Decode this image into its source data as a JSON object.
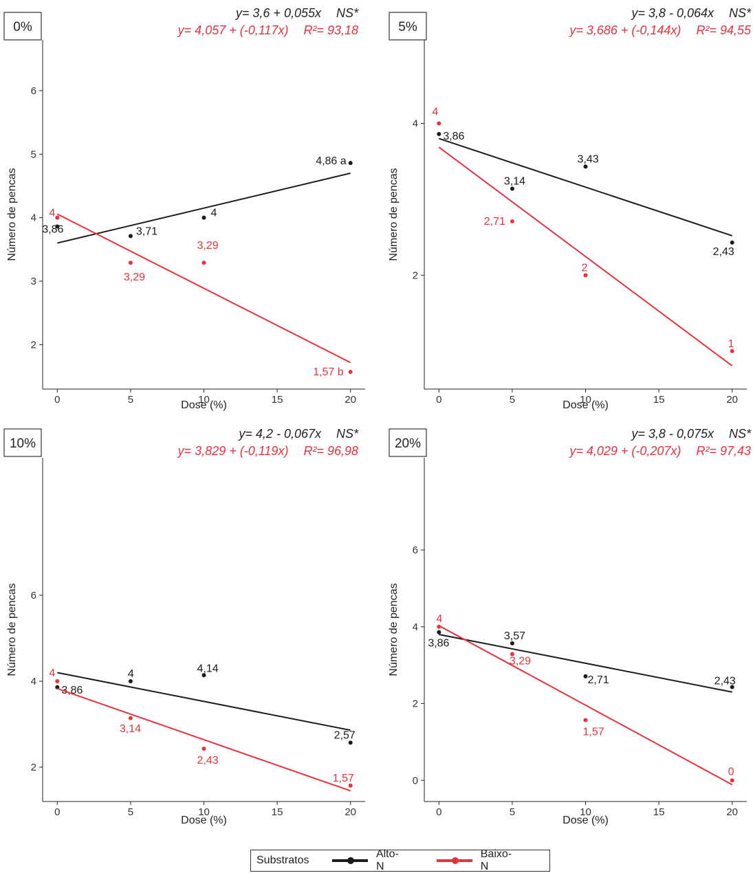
{
  "colors": {
    "alto": "#1a1a1a",
    "baixo": "#e8323c",
    "axis": "#222222"
  },
  "legend": {
    "title": "Substratos",
    "items": [
      {
        "label": "Alto-N",
        "color": "#1a1a1a"
      },
      {
        "label": "Baixo-N",
        "color": "#e8323c"
      }
    ]
  },
  "chart_data": [
    {
      "type": "scatter",
      "panel_label": "0%",
      "xlabel": "Dose (%)",
      "ylabel": "Número de pencas",
      "xlim": [
        -1,
        21
      ],
      "ylim": [
        1.3,
        6.8
      ],
      "xticks": [
        0,
        5,
        10,
        15,
        20
      ],
      "yticks": [
        2,
        3,
        4,
        5,
        6
      ],
      "grid": false,
      "eq_alto": "y= 3,6 + 0,055x",
      "eq_alto_sig": "NS*",
      "eq_baixo": "y= 4,057 + (-0,117x)",
      "eq_baixo_r2": "R²= 93,18",
      "series": [
        {
          "name": "Alto-N",
          "x": [
            0,
            5,
            10,
            20
          ],
          "y": [
            3.86,
            3.71,
            4.0,
            4.86
          ],
          "labels": [
            "3,86",
            "3,71",
            "4",
            "4,86 a"
          ],
          "fit": {
            "intercept": 3.6,
            "slope": 0.055
          }
        },
        {
          "name": "Baixo-N",
          "x": [
            0,
            5,
            10,
            20
          ],
          "y": [
            4.0,
            3.29,
            3.29,
            1.57
          ],
          "labels": [
            "4",
            "3,29",
            "3,29",
            "1,57 b"
          ],
          "fit": {
            "intercept": 4.057,
            "slope": -0.117
          }
        }
      ]
    },
    {
      "type": "scatter",
      "panel_label": "5%",
      "xlabel": "Dose (%)",
      "ylabel": "Número de pencas",
      "xlim": [
        -1,
        21
      ],
      "ylim": [
        0.5,
        5.1
      ],
      "xticks": [
        0,
        5,
        10,
        15,
        20
      ],
      "yticks": [
        2,
        4
      ],
      "grid": false,
      "eq_alto": "y= 3,8 - 0,064x",
      "eq_alto_sig": "NS*",
      "eq_baixo": "y= 3,686 + (-0,144x)",
      "eq_baixo_r2": "R²= 94,55",
      "series": [
        {
          "name": "Alto-N",
          "x": [
            0,
            5,
            10,
            20
          ],
          "y": [
            3.86,
            3.14,
            3.43,
            2.43
          ],
          "labels": [
            "3,86",
            "3,14",
            "3,43",
            "2,43"
          ],
          "fit": {
            "intercept": 3.8,
            "slope": -0.064
          }
        },
        {
          "name": "Baixo-N",
          "x": [
            0,
            5,
            10,
            20
          ],
          "y": [
            4.0,
            2.71,
            2.0,
            1.0
          ],
          "labels": [
            "4",
            "2,71",
            "2",
            "1"
          ],
          "fit": {
            "intercept": 3.686,
            "slope": -0.144
          }
        }
      ]
    },
    {
      "type": "scatter",
      "panel_label": "10%",
      "xlabel": "Dose (%)",
      "ylabel": "Número de pencas",
      "xlim": [
        -1,
        21
      ],
      "ylim": [
        1.2,
        9.2
      ],
      "xticks": [
        0,
        5,
        10,
        15,
        20
      ],
      "yticks": [
        2,
        4,
        6
      ],
      "grid": false,
      "eq_alto": "y= 4,2 - 0,067x",
      "eq_alto_sig": "NS*",
      "eq_baixo": "y= 3,829 + (-0,119x)",
      "eq_baixo_r2": "R²= 96,98",
      "series": [
        {
          "name": "Alto-N",
          "x": [
            0,
            5,
            10,
            20
          ],
          "y": [
            3.86,
            4.0,
            4.14,
            2.57
          ],
          "labels": [
            "3,86",
            "4",
            "4,14",
            "2,57"
          ],
          "fit": {
            "intercept": 4.2,
            "slope": -0.067
          }
        },
        {
          "name": "Baixo-N",
          "x": [
            0,
            5,
            10,
            20
          ],
          "y": [
            4.0,
            3.14,
            2.43,
            1.57
          ],
          "labels": [
            "4",
            "3,14",
            "2,43",
            "1,57"
          ],
          "fit": {
            "intercept": 3.829,
            "slope": -0.119
          }
        }
      ]
    },
    {
      "type": "scatter",
      "panel_label": "20%",
      "xlabel": "Dose (%)",
      "ylabel": "Número de pencas",
      "xlim": [
        -1,
        21
      ],
      "ylim": [
        -0.55,
        8.4
      ],
      "xticks": [
        0,
        5,
        10,
        15,
        20
      ],
      "yticks": [
        0,
        2,
        4,
        6
      ],
      "grid": false,
      "eq_alto": "y= 3,8 - 0,075x",
      "eq_alto_sig": "NS*",
      "eq_baixo": "y= 4,029 + (-0,207x)",
      "eq_baixo_r2": "R²= 97,43",
      "series": [
        {
          "name": "Alto-N",
          "x": [
            0,
            5,
            10,
            20
          ],
          "y": [
            3.86,
            3.57,
            2.71,
            2.43
          ],
          "labels": [
            "3,86",
            "3,57",
            "2,71",
            "2,43"
          ],
          "fit": {
            "intercept": 3.8,
            "slope": -0.075
          }
        },
        {
          "name": "Baixo-N",
          "x": [
            0,
            5,
            10,
            20
          ],
          "y": [
            4.0,
            3.29,
            1.57,
            0.0
          ],
          "labels": [
            "4",
            "3,29",
            "1,57",
            "0"
          ],
          "fit": {
            "intercept": 4.029,
            "slope": -0.207
          }
        }
      ]
    }
  ]
}
